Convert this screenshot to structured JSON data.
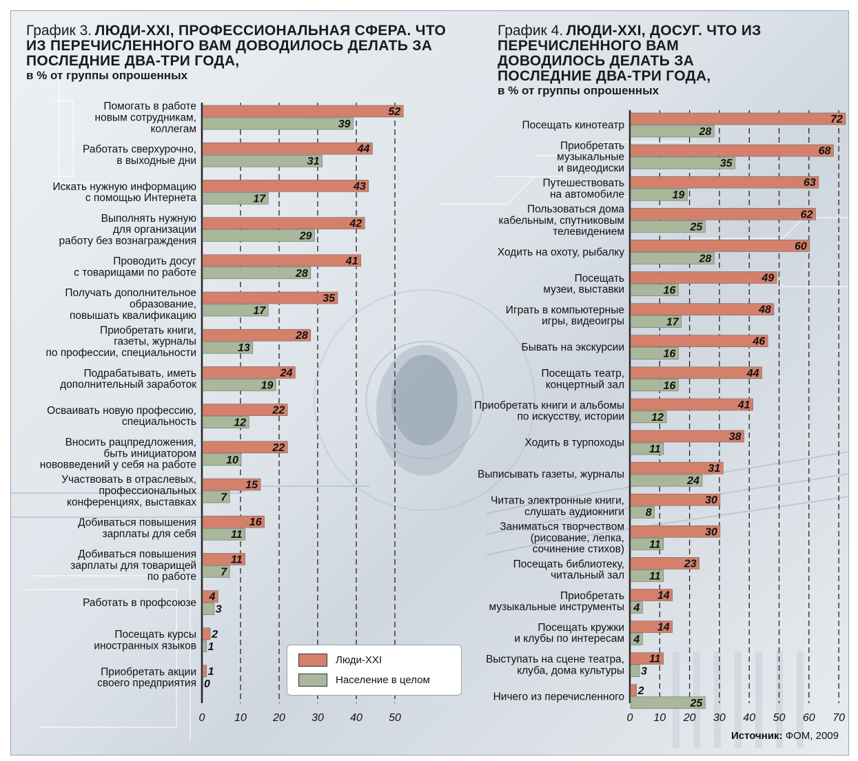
{
  "colors": {
    "people": "#d4806a",
    "population": "#a9b79a",
    "grid": "#222222",
    "label": "#111111"
  },
  "legend": {
    "people_label": "Люди-XXI",
    "population_label": "Население в целом"
  },
  "source": {
    "label": "Источник:",
    "value": "ФОМ, 2009"
  },
  "chart_data": [
    {
      "type": "bar",
      "orientation": "horizontal",
      "title_lead": "График 3.",
      "title": "ЛЮДИ-XXI, ПРОФЕССИОНАЛЬНАЯ СФЕРА. ЧТО ИЗ ПЕРЕЧИСЛЕННОГО ВАМ ДОВОДИЛОСЬ ДЕЛАТЬ ЗА ПОСЛЕДНИЕ ДВА-ТРИ ГОДА,",
      "subtitle": "в % от группы опрошенных",
      "xlim": [
        0,
        50
      ],
      "xticks": [
        "0",
        "10",
        "20",
        "30",
        "40",
        "50"
      ],
      "series": [
        {
          "name": "Люди-XXI",
          "values": [
            52,
            44,
            43,
            42,
            41,
            35,
            28,
            24,
            22,
            22,
            15,
            16,
            11,
            4,
            2,
            1
          ]
        },
        {
          "name": "Население в целом",
          "values": [
            39,
            31,
            17,
            29,
            28,
            17,
            13,
            19,
            12,
            10,
            7,
            11,
            7,
            3,
            1,
            0
          ]
        }
      ],
      "categories": [
        [
          "Помогать в работе",
          "новым сотрудникам,",
          "коллегам"
        ],
        [
          "Работать сверхурочно,",
          "в выходные дни"
        ],
        [
          "Искать нужную информацию",
          "с помощью Интернета"
        ],
        [
          "Выполнять нужную",
          "для организации",
          "работу без вознаграждения"
        ],
        [
          "Проводить досуг",
          "с товарищами по работе"
        ],
        [
          "Получать дополнительное",
          "образование,",
          "повышать квалификацию"
        ],
        [
          "Приобретать книги,",
          "газеты, журналы",
          "по профессии, специальности"
        ],
        [
          "Подрабатывать, иметь",
          "дополнительный заработок"
        ],
        [
          "Осваивать новую профессию,",
          "специальность"
        ],
        [
          "Вносить рацпредложения,",
          "быть инициатором",
          "нововведений у себя на работе"
        ],
        [
          "Участвовать в отраслевых,",
          "профессиональных",
          "конференциях, выставках"
        ],
        [
          "Добиваться повышения",
          "зарплаты для себя"
        ],
        [
          "Добиваться повышения",
          "зарплаты для товарищей",
          "по работе"
        ],
        [
          "Работать в профсоюзе"
        ],
        [
          "Посещать курсы",
          "иностранных языков"
        ],
        [
          "Приобретать акции",
          "своего предприятия"
        ]
      ]
    },
    {
      "type": "bar",
      "orientation": "horizontal",
      "title_lead": "График 4.",
      "title": "ЛЮДИ-XXI, ДОСУГ. ЧТО ИЗ ПЕРЕЧИСЛЕННОГО ВАМ ДОВОДИЛОСЬ ДЕЛАТЬ ЗА ПОСЛЕДНИЕ ДВА-ТРИ ГОДА,",
      "subtitle": "в % от группы опрошенных",
      "xlim": [
        0,
        70
      ],
      "xticks": [
        "0",
        "10",
        "20",
        "30",
        "40",
        "50",
        "60",
        "70"
      ],
      "series": [
        {
          "name": "Люди-XXI",
          "values": [
            72,
            68,
            63,
            62,
            60,
            49,
            48,
            46,
            44,
            41,
            38,
            31,
            30,
            30,
            23,
            14,
            14,
            11,
            2
          ]
        },
        {
          "name": "Население в целом",
          "values": [
            28,
            35,
            19,
            25,
            28,
            16,
            17,
            16,
            16,
            12,
            11,
            24,
            8,
            11,
            11,
            4,
            4,
            3,
            25
          ]
        }
      ],
      "categories": [
        [
          "Посещать кинотеатр"
        ],
        [
          "Приобретать",
          "музыкальные",
          "и видеодиски"
        ],
        [
          "Путешествовать",
          "на автомобиле"
        ],
        [
          "Пользоваться дома",
          "кабельным, спутниковым",
          "телевидением"
        ],
        [
          "Ходить на охоту, рыбалку"
        ],
        [
          "Посещать",
          "музеи, выставки"
        ],
        [
          "Играть в компьютерные",
          "игры, видеоигры"
        ],
        [
          "Бывать на экскурсии"
        ],
        [
          "Посещать театр,",
          "концертный зал"
        ],
        [
          "Приобретать книги и альбомы",
          "по искусству, истории"
        ],
        [
          "Ходить в турпоходы"
        ],
        [
          "Выписывать газеты, журналы"
        ],
        [
          "Читать электронные книги,",
          "слушать аудиокниги"
        ],
        [
          "Заниматься творчеством",
          "(рисование, лепка,",
          "сочинение стихов)"
        ],
        [
          "Посещать библиотеку,",
          "читальный зал"
        ],
        [
          "Приобретать",
          "музыкальные инструменты"
        ],
        [
          "Посещать кружки",
          "и клубы по интересам"
        ],
        [
          "Выступать на сцене театра,",
          "клуба, дома культуры"
        ],
        [
          "Ничего из перечисленного"
        ]
      ]
    }
  ]
}
